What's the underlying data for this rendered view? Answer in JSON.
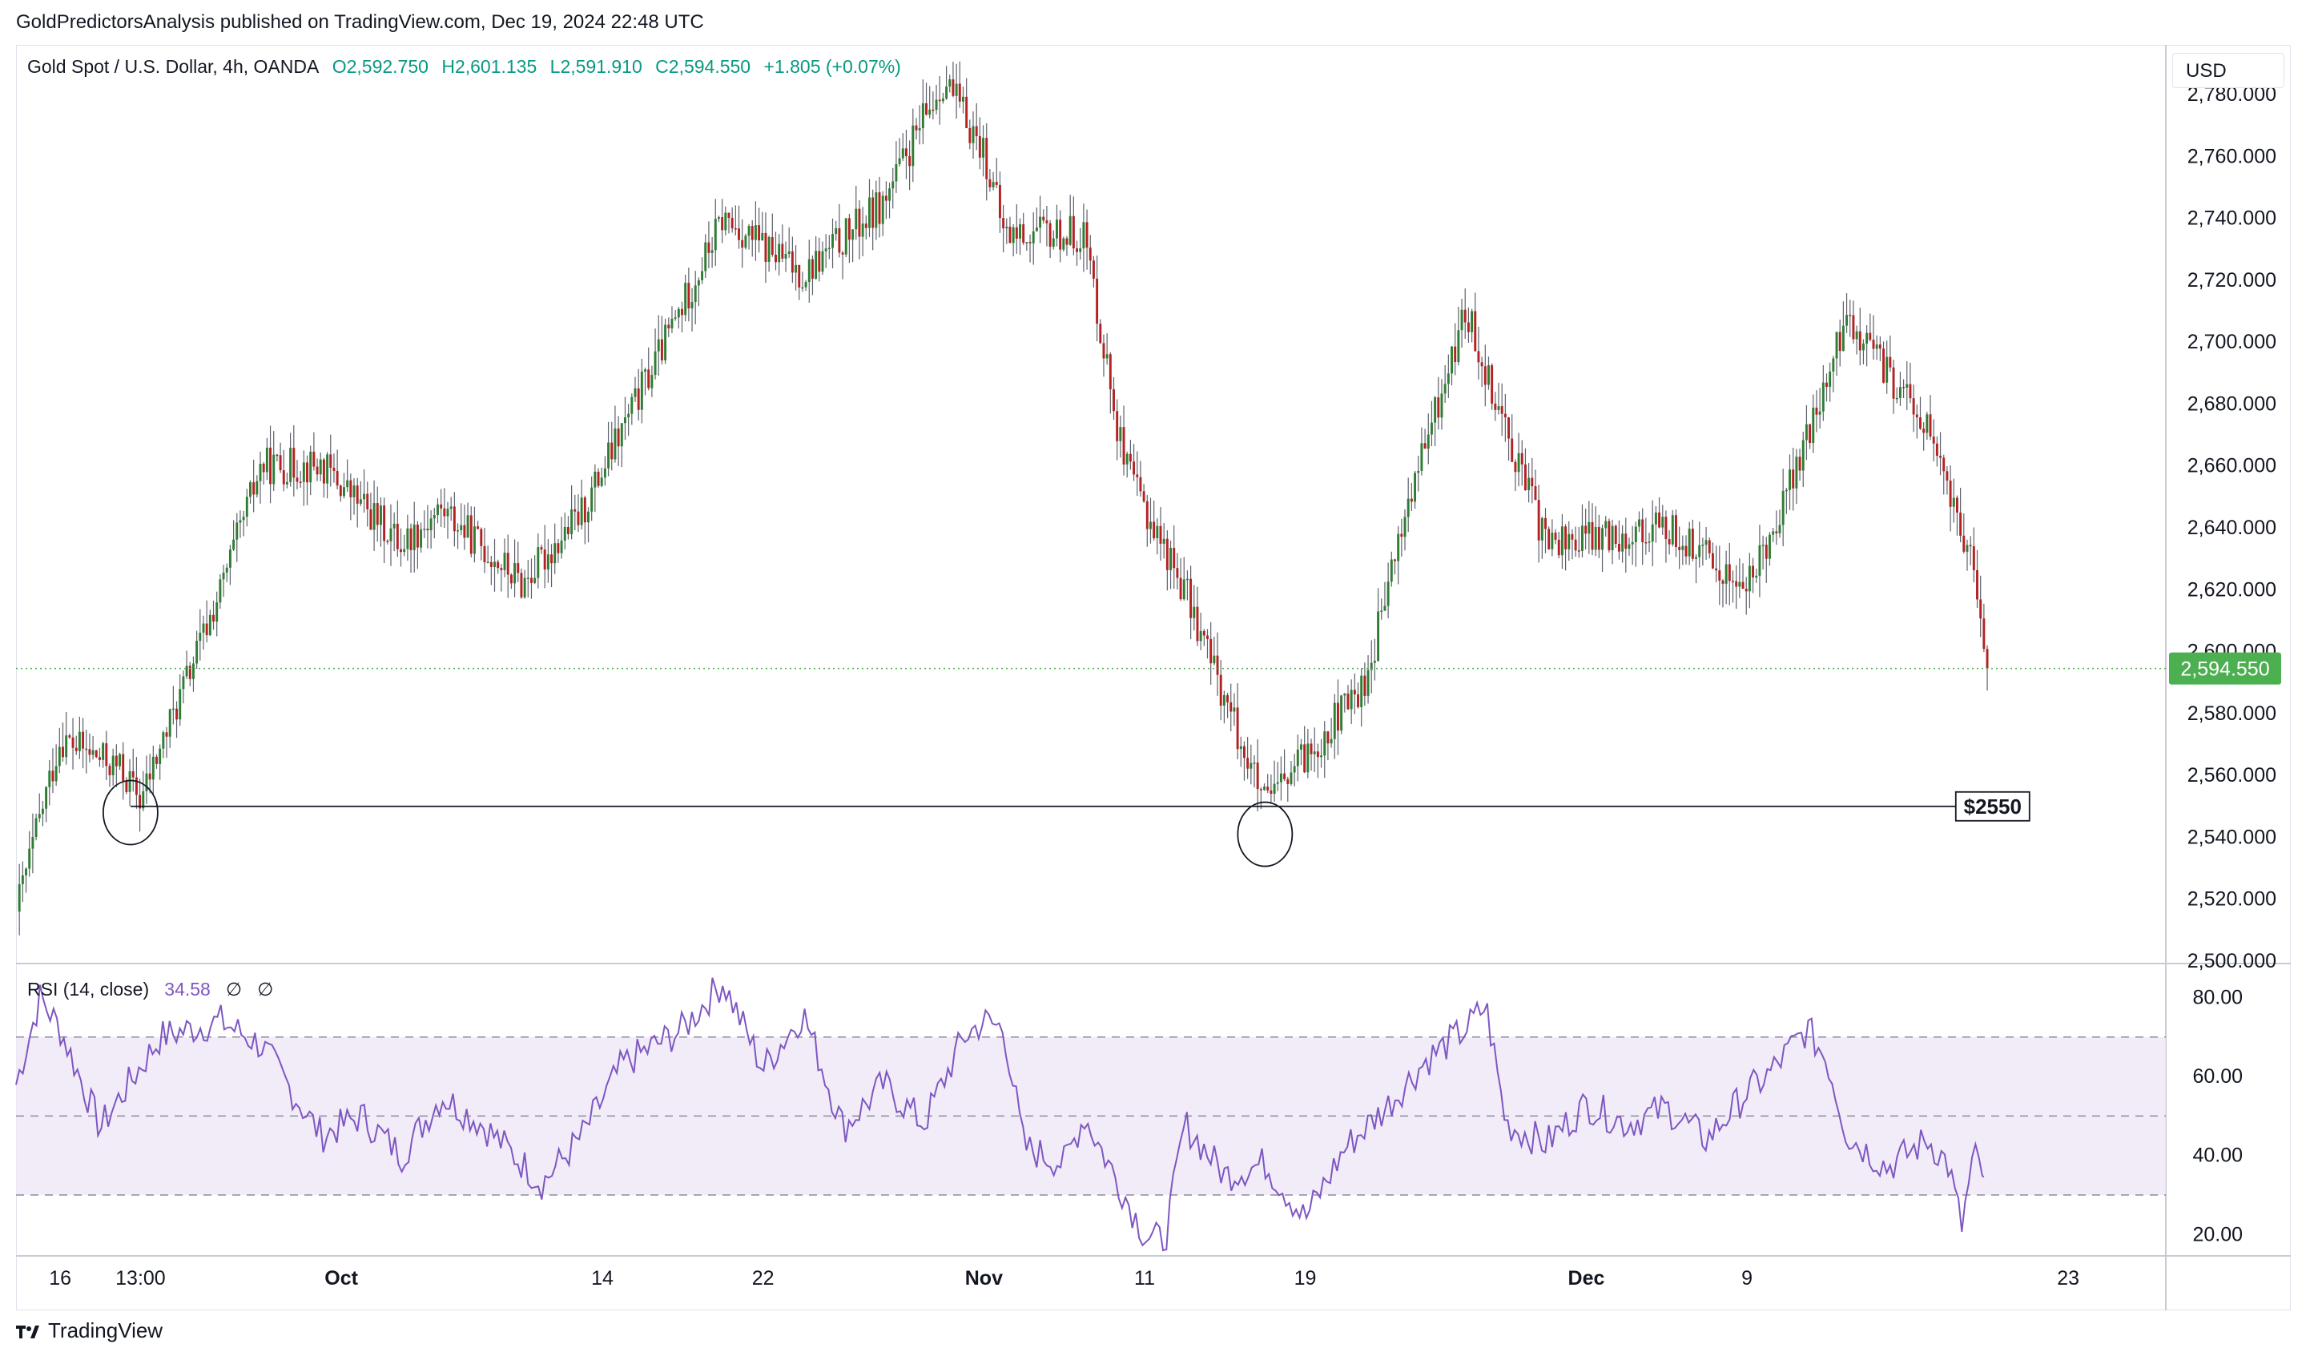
{
  "header": {
    "published": "GoldPredictorsAnalysis published on TradingView.com, Dec 19, 2024 22:48 UTC"
  },
  "legend": {
    "symbol": "Gold Spot / U.S. Dollar, 4h, OANDA",
    "open": "O2,592.750",
    "high": "H2,601.135",
    "low": "L2,591.910",
    "close": "C2,594.550",
    "change": "+1.805 (+0.07%)"
  },
  "currency": "USD",
  "rsi_legend": {
    "label": "RSI (14, close)",
    "value": "34.58",
    "extra1": "∅",
    "extra2": "∅"
  },
  "annotation": {
    "support_label": "$2550"
  },
  "price_tag": "2,594.550",
  "footer": {
    "brand": "TradingView"
  },
  "colors": {
    "up": "#089981",
    "down": "#f23645",
    "candle_up_body": "#2e7d32",
    "candle_down_body": "#b22222",
    "rsi_line": "#7e57c2",
    "rsi_band": "#ede7f6",
    "price_tag_bg": "#4caf50"
  },
  "chart_data": [
    {
      "type": "candlestick",
      "title": "Gold Spot / U.S. Dollar, 4h, OANDA",
      "ylim": [
        2500,
        2795
      ],
      "y_ticks": [
        "2,780.000",
        "2,760.000",
        "2,740.000",
        "2,720.000",
        "2,700.000",
        "2,680.000",
        "2,660.000",
        "2,640.000",
        "2,620.000",
        "2,600.000",
        "2,580.000",
        "2,560.000",
        "2,540.000",
        "2,520.000",
        "2,500.000"
      ],
      "y_tick_values": [
        2780,
        2760,
        2740,
        2720,
        2700,
        2680,
        2660,
        2640,
        2620,
        2600,
        2580,
        2560,
        2540,
        2520,
        2500
      ],
      "x_ticks": [
        "16",
        "13:00",
        "Oct",
        "14",
        "22",
        "Nov",
        "11",
        "19",
        "Dec",
        "9",
        "23"
      ],
      "x_tick_days": [
        0,
        4,
        14,
        27,
        35,
        46,
        54,
        62,
        76,
        84,
        100
      ],
      "x_range_days": [
        -2.2,
        104.7
      ],
      "price_path_days": [
        -2.2,
        0,
        3,
        4,
        8,
        10,
        13,
        17,
        19,
        23,
        26,
        31,
        33,
        37,
        41,
        44,
        46,
        47,
        51,
        53,
        56,
        60,
        65,
        67,
        70,
        74,
        80,
        84,
        87,
        89,
        93,
        94,
        95,
        96
      ],
      "price_path_values": [
        2516,
        2572,
        2562,
        2552,
        2620,
        2660,
        2660,
        2635,
        2646,
        2622,
        2645,
        2712,
        2740,
        2722,
        2745,
        2785,
        2762,
        2735,
        2735,
        2660,
        2620,
        2550,
        2590,
        2645,
        2710,
        2635,
        2640,
        2620,
        2668,
        2708,
        2672,
        2652,
        2634,
        2595
      ],
      "last_price": 2594.55,
      "support_level": 2550,
      "support_line_start_day": 3.5,
      "support_line_end_day": 94.4,
      "circled_lows_days": [
        3.5,
        60.0
      ],
      "circled_lows_values": [
        2548,
        2541
      ]
    },
    {
      "type": "line",
      "title": "RSI (14, close)",
      "ylim": [
        15,
        88
      ],
      "y_ticks": [
        "80.00",
        "60.00",
        "40.00",
        "20.00"
      ],
      "y_tick_values": [
        80,
        60,
        40,
        20
      ],
      "band": [
        30,
        70
      ],
      "midline": 50,
      "last_value": 34.58,
      "x_days": [
        -2.2,
        -1,
        0,
        2,
        3,
        5,
        8,
        10,
        13,
        15,
        17,
        19,
        21,
        23,
        24,
        26,
        28,
        31,
        33,
        35,
        37,
        39,
        41,
        43,
        45,
        46,
        47,
        48,
        50,
        51,
        53,
        54,
        55,
        56,
        58,
        60,
        62,
        64,
        66,
        68,
        70,
        71,
        72,
        74,
        76,
        78,
        80,
        82,
        84,
        85,
        87,
        88,
        89,
        91,
        93,
        94,
        94.7,
        95.3,
        95.8
      ],
      "values": [
        58,
        80,
        72,
        47,
        55,
        70,
        74,
        68,
        45,
        50,
        40,
        55,
        48,
        38,
        33,
        45,
        63,
        72,
        84,
        62,
        76,
        47,
        58,
        48,
        70,
        74,
        72,
        42,
        38,
        50,
        30,
        20,
        18,
        48,
        35,
        38,
        24,
        42,
        52,
        64,
        72,
        78,
        48,
        43,
        53,
        48,
        52,
        44,
        56,
        60,
        72,
        64,
        45,
        37,
        44,
        38,
        22,
        40,
        35
      ]
    }
  ]
}
